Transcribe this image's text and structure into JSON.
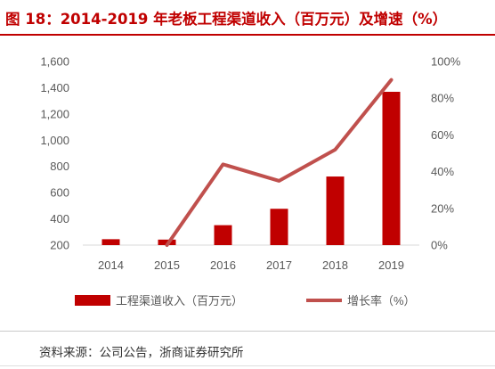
{
  "header": {
    "title": "图 18：2014-2019 年老板工程渠道收入（百万元）及增速（%）"
  },
  "footer": {
    "source": "资料来源：公司公告，浙商证券研究所"
  },
  "chart_data": {
    "type": "bar",
    "categories": [
      "2014",
      "2015",
      "2016",
      "2017",
      "2018",
      "2019"
    ],
    "series": [
      {
        "name": "工程渠道收入（百万元）",
        "type": "bar",
        "axis": "left",
        "values": [
          245,
          242,
          352,
          477,
          723,
          1369
        ],
        "color": "#c00000"
      },
      {
        "name": "增长率（%）",
        "type": "line",
        "axis": "right",
        "values": [
          null,
          0,
          44,
          35,
          52,
          90
        ],
        "color": "#c0504d"
      }
    ],
    "left_axis": {
      "ylim": [
        200,
        1600
      ],
      "ticks": [
        "200",
        "400",
        "600",
        "800",
        "1,000",
        "1,200",
        "1,400",
        "1,600"
      ]
    },
    "right_axis": {
      "ylim": [
        0,
        100
      ],
      "ticks": [
        "0%",
        "20%",
        "40%",
        "60%",
        "80%",
        "100%"
      ]
    },
    "grid": false,
    "legend_position": "bottom"
  }
}
